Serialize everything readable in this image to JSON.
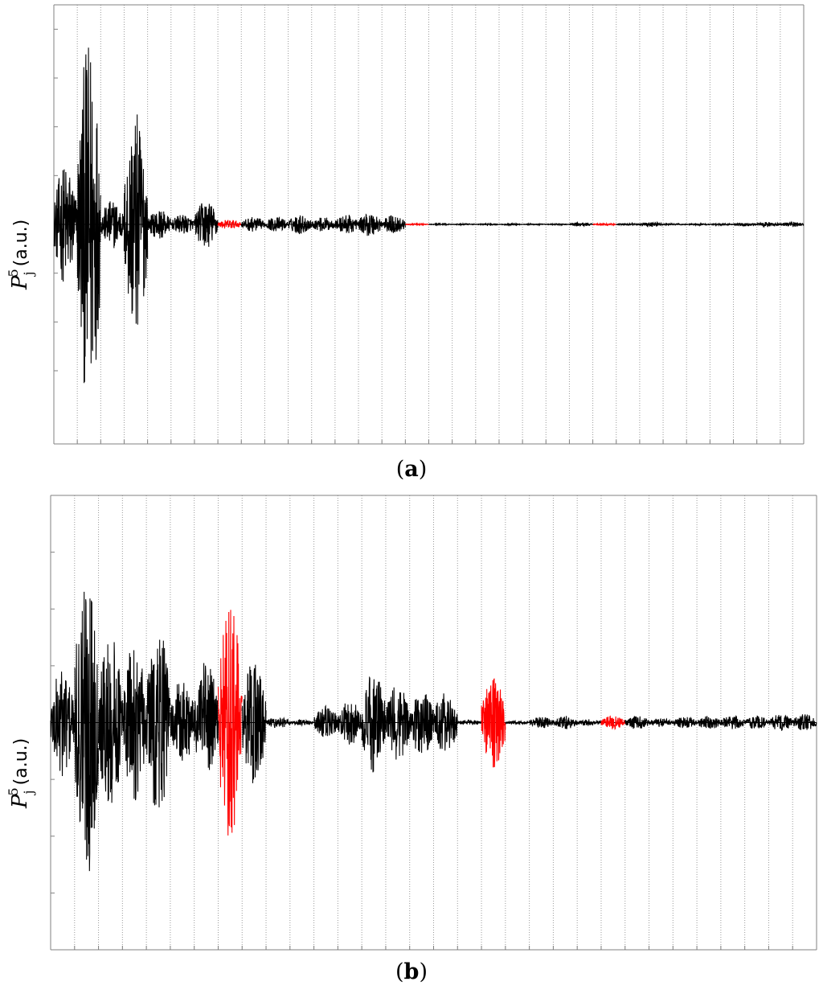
{
  "colors": {
    "normal": "#000000",
    "highlight": "#ff0000",
    "grid": "#9a9a9a",
    "axis": "#808080"
  },
  "chart_data": [
    {
      "type": "line",
      "panel": "a",
      "caption_open": "(",
      "caption_letter": "a",
      "caption_close": ")",
      "ylabel": {
        "symbol": "P",
        "subscript": "j",
        "superscript": "5",
        "units": "(a.u.)"
      },
      "x_divisions": 32,
      "ylim": [
        -4.5,
        4.5
      ],
      "y_ticks": [
        -3,
        -2,
        -1,
        0,
        1,
        2,
        3,
        4
      ],
      "grid": "vertical dotted",
      "segment_amplitude": [
        1.25,
        3.8,
        0.5,
        2.3,
        0.3,
        0.2,
        0.5,
        0.1,
        0.15,
        0.15,
        0.2,
        0.15,
        0.2,
        0.25,
        0.2,
        0.015,
        0.015,
        0.015,
        0.015,
        0.015,
        0.015,
        0.015,
        0.04,
        0.02,
        0.02,
        0.05,
        0.02,
        0.02,
        0.02,
        0.03,
        0.05,
        0.05
      ],
      "highlighted_segments": [
        7,
        15,
        23
      ]
    },
    {
      "type": "line",
      "panel": "b",
      "caption_open": "(",
      "caption_letter": "b",
      "caption_close": ")",
      "ylabel": {
        "symbol": "P",
        "subscript": "j",
        "superscript": "5",
        "units": "(a.u.)"
      },
      "x_divisions": 32,
      "ylim": [
        -4.0,
        4.0
      ],
      "y_ticks": [
        -3,
        -2,
        -1,
        0,
        1,
        2,
        3
      ],
      "grid": "vertical dotted",
      "segment_amplitude": [
        1.0,
        2.8,
        1.6,
        1.4,
        1.7,
        0.8,
        1.1,
        2.1,
        1.1,
        0.1,
        0.05,
        0.3,
        0.4,
        0.9,
        0.7,
        0.6,
        0.55,
        0.05,
        0.85,
        0.03,
        0.1,
        0.12,
        0.06,
        0.12,
        0.12,
        0.08,
        0.1,
        0.12,
        0.12,
        0.12,
        0.15,
        0.15
      ],
      "highlighted_segments": [
        7,
        18,
        23
      ]
    }
  ]
}
